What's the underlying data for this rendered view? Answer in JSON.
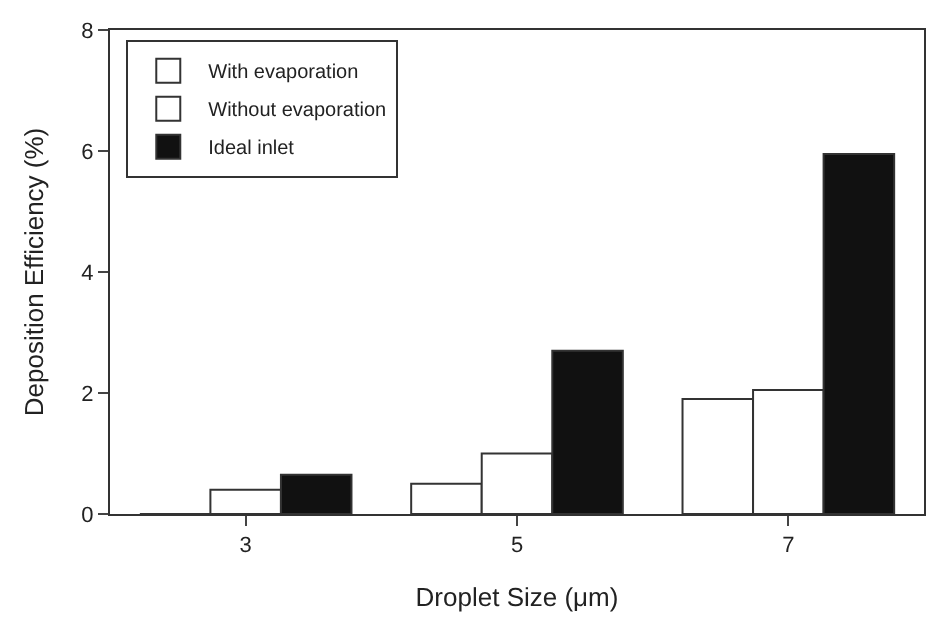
{
  "chart_data": {
    "type": "bar",
    "xlabel": "Droplet Size (μm)",
    "ylabel": "Deposition Efficiency (%)",
    "categories": [
      "3",
      "5",
      "7"
    ],
    "series": [
      {
        "name": "With evaporation",
        "color": "#ffffff",
        "values": [
          0,
          0.5,
          1.9
        ]
      },
      {
        "name": "Without evaporation",
        "color": "#ffffff",
        "values": [
          0.4,
          1.0,
          2.05
        ]
      },
      {
        "name": "Ideal inlet",
        "color": "#111111",
        "values": [
          0.65,
          2.7,
          5.95
        ]
      }
    ],
    "ylim": [
      0,
      8
    ],
    "yticks": [
      0,
      2,
      4,
      6,
      8
    ],
    "legend": "top left"
  }
}
